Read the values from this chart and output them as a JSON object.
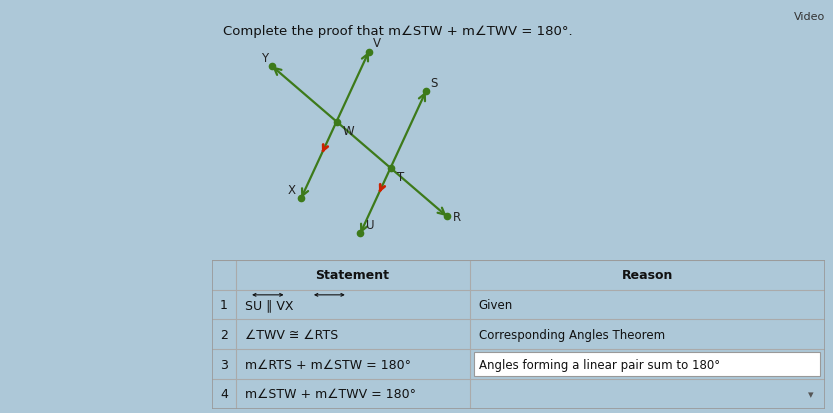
{
  "bg_color": "#adc8d8",
  "panel_color": "#f0eeee",
  "title": "Complete the proof that m∠STW + m∠TWV = 180°.",
  "video_label": "Video",
  "line_color": "#3d7a1a",
  "dot_color": "#3d7a1a",
  "red_color": "#cc2200",
  "table_header_statement": "Statement",
  "table_header_reason": "Reason",
  "rows": [
    {
      "num": "1",
      "statement": "SU ∥ VX",
      "reason": "Given"
    },
    {
      "num": "2",
      "statement": "∠TWV ≅ ∠RTS",
      "reason": "Corresponding Angles Theorem"
    },
    {
      "num": "3",
      "statement": "m∠RTS + m∠STW = 180°",
      "reason": "Angles forming a linear pair sum to 180°"
    },
    {
      "num": "4",
      "statement": "m∠STW + m∠TWV = 180°",
      "reason": ""
    }
  ]
}
